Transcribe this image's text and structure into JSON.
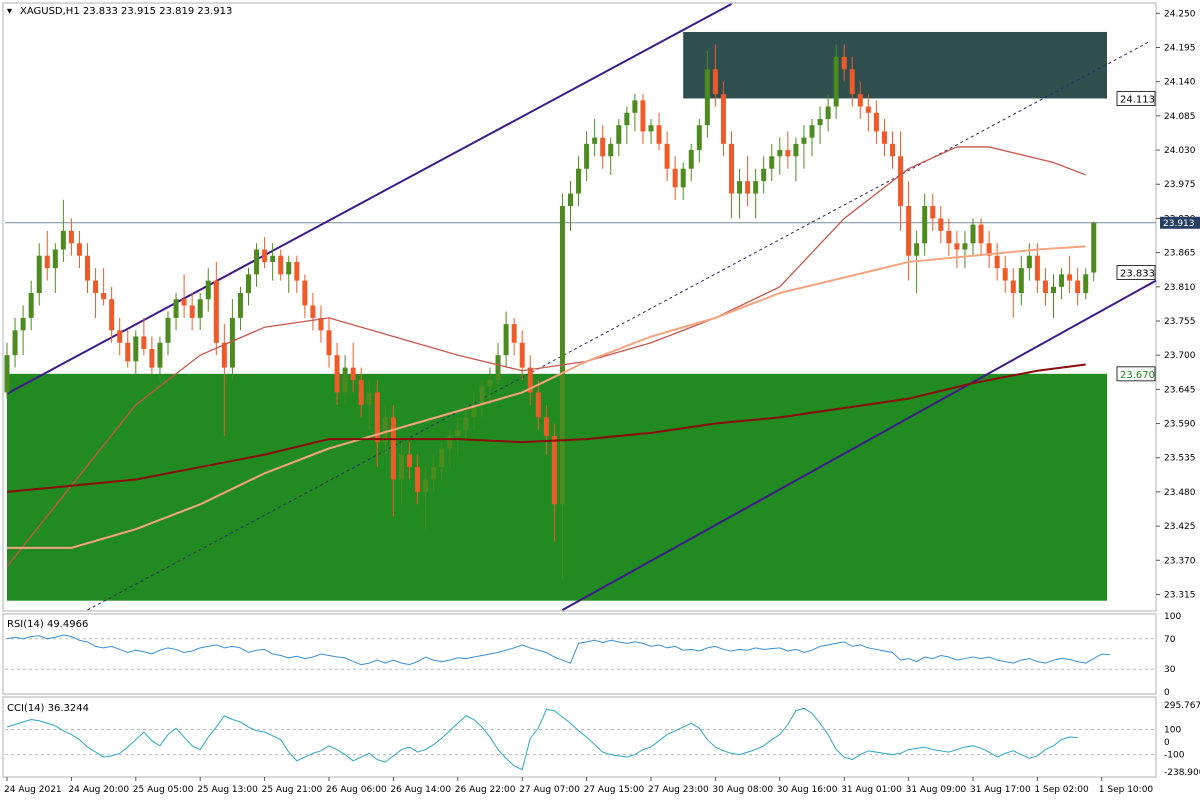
{
  "symbol_header": "XAGUSD,H1  23.833 23.915 23.819 23.913",
  "rsi_header": "RSI(14) 49.4966",
  "cci_header": "CCI(14) 36.3244",
  "colors": {
    "bull": "#4d8a1f",
    "bear": "#ef5a28",
    "green_zone": "#218a21",
    "supply_zone": "#2f4f4f",
    "channel": "#3d1a8a",
    "ma_fast": "#c9574b",
    "ma_mid": "#f4a57f",
    "ma_slow": "#8a0c0c",
    "rsi": "#3b8fd6",
    "cci": "#2ea6c7"
  },
  "chart_data": {
    "type": "candlestick",
    "title": "XAGUSD,H1",
    "ohlc_last": {
      "open": 23.833,
      "high": 23.915,
      "low": 23.819,
      "close": 23.913
    },
    "ylim": [
      23.29,
      24.265
    ],
    "price_ticks": [
      "24.250",
      "24.195",
      "24.140",
      "24.085",
      "24.030",
      "23.975",
      "23.920",
      "23.865",
      "23.810",
      "23.755",
      "23.700",
      "23.645",
      "23.590",
      "23.535",
      "23.480",
      "23.425",
      "23.370",
      "23.315"
    ],
    "price_tick_values": [
      24.25,
      24.195,
      24.14,
      24.085,
      24.03,
      23.975,
      23.92,
      23.865,
      23.81,
      23.755,
      23.7,
      23.645,
      23.59,
      23.535,
      23.48,
      23.425,
      23.37,
      23.315
    ],
    "time_labels": [
      "24 Aug 2021",
      "24 Aug 20:00",
      "25 Aug 05:00",
      "25 Aug 13:00",
      "25 Aug 21:00",
      "26 Aug 06:00",
      "26 Aug 14:00",
      "26 Aug 22:00",
      "27 Aug 07:00",
      "27 Aug 15:00",
      "27 Aug 23:00",
      "30 Aug 08:00",
      "30 Aug 16:00",
      "31 Aug 01:00",
      "31 Aug 09:00",
      "31 Aug 17:00",
      "1 Sep 02:00",
      "1 Sep 10:00"
    ],
    "time_label_index": [
      0,
      8,
      16,
      24,
      32,
      40,
      48,
      56,
      64,
      72,
      80,
      88,
      96,
      104,
      112,
      120,
      128,
      136
    ],
    "bar_count": 138,
    "current_price": {
      "value": 23.913,
      "label": "23.913"
    },
    "markers": [
      {
        "label": "24.113",
        "value": 24.113
      },
      {
        "label": "23.833",
        "value": 23.833
      },
      {
        "label": "23.670",
        "value": 23.67
      }
    ],
    "zones": [
      {
        "name": "supply",
        "x0": 84,
        "x1": 137,
        "y0": 24.113,
        "y1": 24.22
      },
      {
        "name": "demand",
        "x0": 0,
        "x1": 137,
        "y0": 23.305,
        "y1": 23.67
      }
    ],
    "trendlines": [
      {
        "style": "solid",
        "x0": 0,
        "y0": 23.638,
        "x1": 90,
        "y1": 24.265
      },
      {
        "style": "solid",
        "x0": 69,
        "y0": 23.29,
        "x1": 144,
        "y1": 23.82
      },
      {
        "style": "dashed",
        "x0": 10,
        "y0": 23.29,
        "x1": 142,
        "y1": 24.205
      }
    ],
    "ma_fast": [
      [
        0,
        23.36
      ],
      [
        8,
        23.49
      ],
      [
        16,
        23.62
      ],
      [
        24,
        23.7
      ],
      [
        32,
        23.745
      ],
      [
        40,
        23.76
      ],
      [
        48,
        23.73
      ],
      [
        56,
        23.7
      ],
      [
        64,
        23.675
      ],
      [
        72,
        23.69
      ],
      [
        80,
        23.72
      ],
      [
        88,
        23.76
      ],
      [
        96,
        23.81
      ],
      [
        104,
        23.92
      ],
      [
        112,
        24.0
      ],
      [
        118,
        24.035
      ],
      [
        122,
        24.035
      ],
      [
        130,
        24.01
      ],
      [
        134,
        23.99
      ]
    ],
    "ma_mid": [
      [
        0,
        23.39
      ],
      [
        8,
        23.39
      ],
      [
        16,
        23.42
      ],
      [
        24,
        23.46
      ],
      [
        32,
        23.51
      ],
      [
        40,
        23.55
      ],
      [
        48,
        23.58
      ],
      [
        56,
        23.61
      ],
      [
        64,
        23.64
      ],
      [
        72,
        23.69
      ],
      [
        80,
        23.73
      ],
      [
        88,
        23.76
      ],
      [
        96,
        23.8
      ],
      [
        104,
        23.825
      ],
      [
        112,
        23.85
      ],
      [
        120,
        23.86
      ],
      [
        128,
        23.87
      ],
      [
        134,
        23.875
      ]
    ],
    "ma_slow": [
      [
        0,
        23.48
      ],
      [
        8,
        23.49
      ],
      [
        16,
        23.5
      ],
      [
        24,
        23.52
      ],
      [
        32,
        23.54
      ],
      [
        40,
        23.565
      ],
      [
        48,
        23.565
      ],
      [
        56,
        23.565
      ],
      [
        64,
        23.56
      ],
      [
        72,
        23.565
      ],
      [
        80,
        23.575
      ],
      [
        88,
        23.59
      ],
      [
        96,
        23.6
      ],
      [
        104,
        23.615
      ],
      [
        112,
        23.63
      ],
      [
        120,
        23.655
      ],
      [
        128,
        23.675
      ],
      [
        134,
        23.685
      ]
    ],
    "rsi": {
      "levels": [
        "70",
        "30"
      ],
      "ticks": [
        "100",
        "70",
        "30",
        "0"
      ],
      "values": [
        70,
        72,
        70,
        73,
        74,
        70,
        72,
        75,
        73,
        68,
        66,
        60,
        58,
        60,
        56,
        52,
        55,
        53,
        50,
        55,
        58,
        56,
        52,
        54,
        58,
        60,
        62,
        58,
        60,
        58,
        52,
        55,
        56,
        50,
        48,
        45,
        47,
        44,
        46,
        50,
        48,
        46,
        45,
        40,
        36,
        38,
        42,
        38,
        42,
        38,
        36,
        40,
        46,
        42,
        40,
        42,
        45,
        44,
        46,
        48,
        50,
        52,
        55,
        58,
        62,
        58,
        55,
        52,
        46,
        42,
        38,
        64,
        66,
        68,
        65,
        68,
        66,
        64,
        66,
        64,
        60,
        62,
        58,
        60,
        55,
        56,
        54,
        58,
        60,
        56,
        54,
        56,
        55,
        58,
        56,
        57,
        58,
        54,
        56,
        52,
        55,
        60,
        62,
        64,
        66,
        60,
        62,
        58,
        56,
        54,
        52,
        42,
        44,
        40,
        46,
        44,
        48,
        46,
        42,
        44,
        46,
        44,
        46,
        42,
        40,
        38,
        42,
        44,
        40,
        38,
        42,
        44,
        43,
        40,
        38,
        44,
        50,
        49
      ]
    },
    "cci": {
      "ticks": [
        "295.7672",
        "100",
        "0",
        "-100",
        "-238.900"
      ],
      "levels": [
        "100",
        "-100"
      ],
      "values": [
        120,
        140,
        160,
        180,
        170,
        150,
        130,
        90,
        60,
        20,
        -40,
        -80,
        -120,
        -110,
        -90,
        -40,
        20,
        80,
        10,
        -30,
        60,
        110,
        40,
        -30,
        -60,
        40,
        120,
        210,
        180,
        160,
        120,
        90,
        80,
        50,
        20,
        -80,
        -150,
        -120,
        -90,
        -70,
        -30,
        -60,
        -100,
        -150,
        -120,
        -90,
        -140,
        -160,
        -110,
        -60,
        -40,
        -80,
        -60,
        -20,
        30,
        90,
        150,
        210,
        180,
        120,
        40,
        -60,
        -130,
        -190,
        -220,
        30,
        110,
        260,
        250,
        200,
        150,
        90,
        40,
        -20,
        -80,
        -100,
        -110,
        -120,
        -100,
        -60,
        -40,
        10,
        60,
        90,
        120,
        150,
        110,
        20,
        -40,
        -70,
        -90,
        -100,
        -80,
        -60,
        -30,
        20,
        60,
        140,
        250,
        270,
        230,
        150,
        60,
        -60,
        -120,
        -140,
        -100,
        -70,
        -80,
        -90,
        -100,
        -90,
        -60,
        -50,
        -40,
        -60,
        -70,
        -80,
        -60,
        -40,
        -30,
        -50,
        -80,
        -120,
        -90,
        -70,
        -100,
        -130,
        -110,
        -60,
        -30,
        20,
        40,
        36
      ]
    },
    "candles": [
      [
        23.64,
        23.72,
        23.63,
        23.7
      ],
      [
        23.7,
        23.76,
        23.68,
        23.74
      ],
      [
        23.74,
        23.78,
        23.7,
        23.76
      ],
      [
        23.76,
        23.82,
        23.74,
        23.8
      ],
      [
        23.8,
        23.88,
        23.78,
        23.86
      ],
      [
        23.86,
        23.9,
        23.82,
        23.84
      ],
      [
        23.84,
        23.88,
        23.8,
        23.87
      ],
      [
        23.87,
        23.95,
        23.85,
        23.9
      ],
      [
        23.9,
        23.92,
        23.86,
        23.88
      ],
      [
        23.88,
        23.9,
        23.84,
        23.86
      ],
      [
        23.86,
        23.88,
        23.8,
        23.82
      ],
      [
        23.82,
        23.84,
        23.76,
        23.8
      ],
      [
        23.8,
        23.84,
        23.78,
        23.79
      ],
      [
        23.79,
        23.81,
        23.72,
        23.74
      ],
      [
        23.74,
        23.76,
        23.7,
        23.72
      ],
      [
        23.72,
        23.74,
        23.68,
        23.69
      ],
      [
        23.69,
        23.74,
        23.67,
        23.73
      ],
      [
        23.73,
        23.76,
        23.7,
        23.71
      ],
      [
        23.71,
        23.73,
        23.67,
        23.68
      ],
      [
        23.68,
        23.73,
        23.66,
        23.72
      ],
      [
        23.72,
        23.77,
        23.7,
        23.76
      ],
      [
        23.76,
        23.8,
        23.74,
        23.79
      ],
      [
        23.79,
        23.83,
        23.76,
        23.78
      ],
      [
        23.78,
        23.8,
        23.74,
        23.76
      ],
      [
        23.76,
        23.8,
        23.74,
        23.79
      ],
      [
        23.79,
        23.84,
        23.77,
        23.82
      ],
      [
        23.82,
        23.85,
        23.7,
        23.72
      ],
      [
        23.72,
        23.75,
        23.57,
        23.68
      ],
      [
        23.68,
        23.79,
        23.66,
        23.76
      ],
      [
        23.76,
        23.81,
        23.74,
        23.8
      ],
      [
        23.8,
        23.84,
        23.78,
        23.83
      ],
      [
        23.83,
        23.88,
        23.81,
        23.87
      ],
      [
        23.87,
        23.89,
        23.84,
        23.85
      ],
      [
        23.85,
        23.88,
        23.82,
        23.86
      ],
      [
        23.86,
        23.87,
        23.82,
        23.83
      ],
      [
        23.83,
        23.86,
        23.8,
        23.85
      ],
      [
        23.85,
        23.86,
        23.8,
        23.82
      ],
      [
        23.82,
        23.83,
        23.76,
        23.78
      ],
      [
        23.78,
        23.8,
        23.74,
        23.76
      ],
      [
        23.76,
        23.78,
        23.72,
        23.74
      ],
      [
        23.74,
        23.76,
        23.68,
        23.7
      ],
      [
        23.7,
        23.72,
        23.62,
        23.64
      ],
      [
        23.64,
        23.7,
        23.62,
        23.68
      ],
      [
        23.68,
        23.72,
        23.64,
        23.66
      ],
      [
        23.66,
        23.68,
        23.6,
        23.62
      ],
      [
        23.62,
        23.66,
        23.58,
        23.64
      ],
      [
        23.64,
        23.66,
        23.52,
        23.56
      ],
      [
        23.56,
        23.62,
        23.54,
        23.6
      ],
      [
        23.6,
        23.62,
        23.44,
        23.5
      ],
      [
        23.5,
        23.56,
        23.46,
        23.54
      ],
      [
        23.54,
        23.56,
        23.5,
        23.52
      ],
      [
        23.52,
        23.54,
        23.46,
        23.48
      ],
      [
        23.48,
        23.52,
        23.42,
        23.5
      ],
      [
        23.5,
        23.54,
        23.48,
        23.52
      ],
      [
        23.52,
        23.56,
        23.5,
        23.55
      ],
      [
        23.55,
        23.58,
        23.52,
        23.57
      ],
      [
        23.57,
        23.6,
        23.54,
        23.58
      ],
      [
        23.58,
        23.62,
        23.56,
        23.6
      ],
      [
        23.6,
        23.64,
        23.58,
        23.62
      ],
      [
        23.62,
        23.66,
        23.6,
        23.65
      ],
      [
        23.65,
        23.68,
        23.62,
        23.66
      ],
      [
        23.66,
        23.72,
        23.64,
        23.7
      ],
      [
        23.7,
        23.77,
        23.68,
        23.75
      ],
      [
        23.75,
        23.76,
        23.7,
        23.72
      ],
      [
        23.72,
        23.74,
        23.66,
        23.68
      ],
      [
        23.68,
        23.7,
        23.62,
        23.64
      ],
      [
        23.64,
        23.66,
        23.58,
        23.6
      ],
      [
        23.6,
        23.62,
        23.54,
        23.57
      ],
      [
        23.57,
        23.59,
        23.4,
        23.46
      ],
      [
        23.46,
        23.96,
        23.34,
        23.94
      ],
      [
        23.94,
        23.98,
        23.9,
        23.96
      ],
      [
        23.96,
        24.02,
        23.94,
        24.0
      ],
      [
        24.0,
        24.06,
        23.98,
        24.04
      ],
      [
        24.04,
        24.08,
        24.02,
        24.05
      ],
      [
        24.05,
        24.07,
        24.0,
        24.02
      ],
      [
        24.02,
        24.05,
        23.99,
        24.04
      ],
      [
        24.04,
        24.08,
        24.02,
        24.07
      ],
      [
        24.07,
        24.1,
        24.04,
        24.09
      ],
      [
        24.09,
        24.12,
        24.06,
        24.11
      ],
      [
        24.11,
        24.12,
        24.04,
        24.06
      ],
      [
        24.06,
        24.08,
        24.04,
        24.07
      ],
      [
        24.07,
        24.09,
        24.03,
        24.04
      ],
      [
        24.04,
        24.06,
        23.98,
        24.0
      ],
      [
        24.0,
        24.02,
        23.95,
        23.97
      ],
      [
        23.97,
        24.01,
        23.95,
        24.0
      ],
      [
        24.0,
        24.04,
        23.98,
        24.03
      ],
      [
        24.03,
        24.08,
        24.01,
        24.07
      ],
      [
        24.07,
        24.19,
        24.05,
        24.16
      ],
      [
        24.16,
        24.2,
        24.1,
        24.12
      ],
      [
        24.12,
        24.14,
        24.02,
        24.04
      ],
      [
        24.04,
        24.06,
        23.92,
        23.96
      ],
      [
        23.96,
        24.0,
        23.92,
        23.98
      ],
      [
        23.98,
        24.02,
        23.94,
        23.96
      ],
      [
        23.96,
        24.0,
        23.92,
        23.98
      ],
      [
        23.98,
        24.02,
        23.96,
        24.0
      ],
      [
        24.0,
        24.04,
        23.98,
        24.02
      ],
      [
        24.02,
        24.05,
        23.99,
        24.03
      ],
      [
        24.03,
        24.06,
        24.0,
        24.02
      ],
      [
        24.02,
        24.05,
        23.98,
        24.04
      ],
      [
        24.04,
        24.07,
        24.0,
        24.05
      ],
      [
        24.05,
        24.08,
        24.02,
        24.07
      ],
      [
        24.07,
        24.1,
        24.04,
        24.08
      ],
      [
        24.08,
        24.12,
        24.06,
        24.1
      ],
      [
        24.1,
        24.2,
        24.08,
        24.18
      ],
      [
        24.18,
        24.2,
        24.14,
        24.16
      ],
      [
        24.16,
        24.18,
        24.1,
        24.12
      ],
      [
        24.12,
        24.14,
        24.08,
        24.1
      ],
      [
        24.1,
        24.12,
        24.06,
        24.09
      ],
      [
        24.09,
        24.11,
        24.04,
        24.06
      ],
      [
        24.06,
        24.08,
        24.02,
        24.04
      ],
      [
        24.04,
        24.06,
        24.0,
        24.02
      ],
      [
        24.02,
        24.06,
        23.9,
        23.94
      ],
      [
        23.94,
        23.98,
        23.82,
        23.86
      ],
      [
        23.86,
        23.9,
        23.8,
        23.88
      ],
      [
        23.88,
        23.96,
        23.86,
        23.94
      ],
      [
        23.94,
        23.96,
        23.9,
        23.92
      ],
      [
        23.92,
        23.94,
        23.88,
        23.9
      ],
      [
        23.9,
        23.92,
        23.86,
        23.88
      ],
      [
        23.88,
        23.9,
        23.84,
        23.87
      ],
      [
        23.87,
        23.9,
        23.84,
        23.88
      ],
      [
        23.88,
        23.92,
        23.86,
        23.91
      ],
      [
        23.91,
        23.92,
        23.86,
        23.88
      ],
      [
        23.88,
        23.9,
        23.84,
        23.86
      ],
      [
        23.86,
        23.88,
        23.82,
        23.84
      ],
      [
        23.84,
        23.86,
        23.8,
        23.82
      ],
      [
        23.82,
        23.84,
        23.76,
        23.8
      ],
      [
        23.8,
        23.86,
        23.78,
        23.84
      ],
      [
        23.84,
        23.88,
        23.82,
        23.86
      ],
      [
        23.86,
        23.88,
        23.8,
        23.82
      ],
      [
        23.82,
        23.84,
        23.78,
        23.8
      ],
      [
        23.8,
        23.83,
        23.76,
        23.81
      ],
      [
        23.81,
        23.84,
        23.79,
        23.83
      ],
      [
        23.83,
        23.86,
        23.8,
        23.82
      ],
      [
        23.82,
        23.84,
        23.78,
        23.8
      ],
      [
        23.8,
        23.84,
        23.79,
        23.83
      ],
      [
        23.833,
        23.915,
        23.819,
        23.913
      ]
    ]
  }
}
